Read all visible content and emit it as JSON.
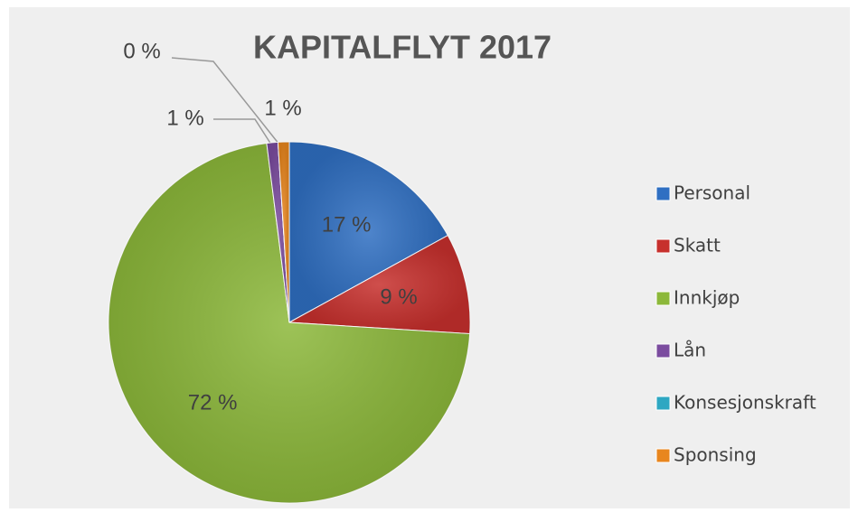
{
  "chart_data": {
    "type": "pie",
    "title": "KAPITALFLYT 2017",
    "categories": [
      "Personal",
      "Skatt",
      "Innkjøp",
      "Lån",
      "Konsesjonskraft",
      "Sponsing"
    ],
    "values": [
      17,
      9,
      72,
      1,
      0,
      1
    ],
    "value_labels": [
      "17 %",
      "9 %",
      "72 %",
      "1 %",
      "0 %",
      "1 %"
    ],
    "colors": [
      "#2f6fc2",
      "#c7302d",
      "#8cb83a",
      "#7b4c9f",
      "#2ea7c2",
      "#e8861e"
    ],
    "legend": "right"
  }
}
